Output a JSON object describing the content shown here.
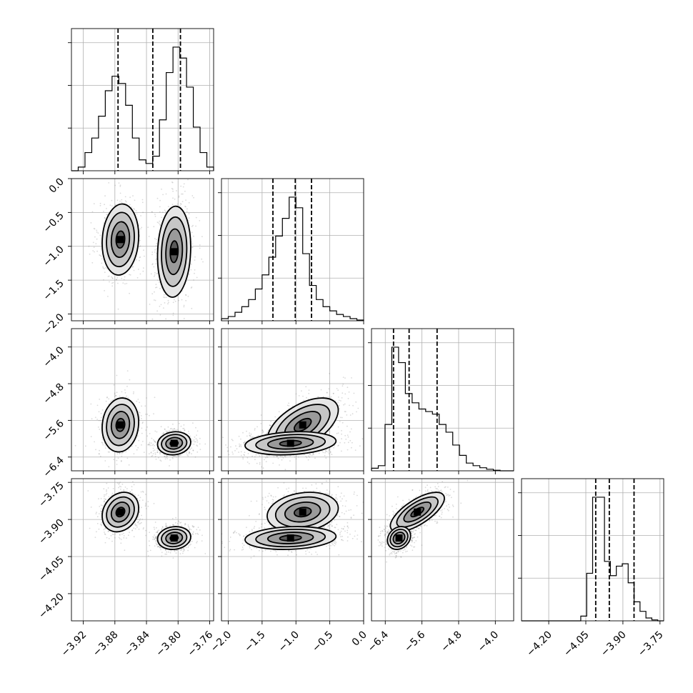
{
  "chart_data": {
    "type": "corner",
    "n_params": 4,
    "params": [
      {
        "range": [
          -3.935,
          -3.755
        ],
        "ticks": [
          -3.92,
          -3.88,
          -3.84,
          -3.8,
          -3.76
        ],
        "tick_labels": [
          "−3.92",
          "−3.88",
          "−3.84",
          "−3.80",
          "−3.76"
        ],
        "quantiles": [
          -3.876,
          -3.832,
          -3.797
        ],
        "hist_counts": [
          0,
          1,
          5,
          9,
          15,
          22,
          26,
          24,
          18,
          9,
          3,
          2,
          4,
          14,
          27,
          34,
          31,
          23,
          12,
          5,
          1
        ]
      },
      {
        "range": [
          -2.1,
          0.0
        ],
        "ticks": [
          -2.0,
          -1.5,
          -1.0,
          -0.5,
          0.0
        ],
        "tick_labels": [
          "−2.0",
          "−1.5",
          "−1.0",
          "−0.5",
          "0.0"
        ],
        "quantiles": [
          -1.34,
          -1.01,
          -0.77
        ],
        "hist_counts": [
          0.3,
          0.6,
          1.2,
          2,
          3,
          4.5,
          6.5,
          9,
          12,
          14.5,
          17.5,
          16,
          9.5,
          5,
          3,
          2,
          1.4,
          0.9,
          0.6,
          0.3,
          0.1
        ]
      },
      {
        "range": [
          -6.7,
          -3.6
        ],
        "ticks": [
          -6.4,
          -5.6,
          -4.8,
          -4.0
        ],
        "tick_labels": [
          "−6.4",
          "−5.6",
          "−4.8",
          "−4.0"
        ],
        "quantiles": [
          -6.22,
          -5.88,
          -5.27
        ],
        "hist_counts": [
          0.5,
          1,
          9,
          24,
          21,
          15,
          13.2,
          12,
          11.5,
          11,
          9,
          7.5,
          5,
          3,
          1.5,
          1,
          0.6,
          0.3,
          0.1,
          0,
          0
        ]
      },
      {
        "range": [
          -4.31,
          -3.735
        ],
        "ticks": [
          -4.2,
          -4.05,
          -3.9,
          -3.75
        ],
        "tick_labels": [
          "−4.20",
          "−4.05",
          "−3.90",
          "−3.75"
        ],
        "quantiles": [
          -4.01,
          -3.955,
          -3.855
        ],
        "hist_counts": [
          0,
          0,
          0,
          0,
          0,
          0,
          0,
          0,
          0,
          0,
          1,
          10,
          26,
          26,
          12.5,
          9.5,
          11.5,
          12,
          8,
          4,
          2,
          0.6,
          0.2,
          0
        ]
      }
    ],
    "components": [
      {
        "mean": [
          -3.873,
          -0.9,
          -5.7,
          -3.87
        ],
        "sd": [
          0.011,
          0.25,
          0.28,
          0.038
        ],
        "weight": 0.48
      },
      {
        "mean": [
          -3.805,
          -1.08,
          -6.1,
          -3.975
        ],
        "sd": [
          0.01,
          0.32,
          0.12,
          0.022
        ],
        "weight": 0.52
      }
    ],
    "hist_y_ticks": 3,
    "grid": true,
    "quantile_style": "dashed"
  }
}
